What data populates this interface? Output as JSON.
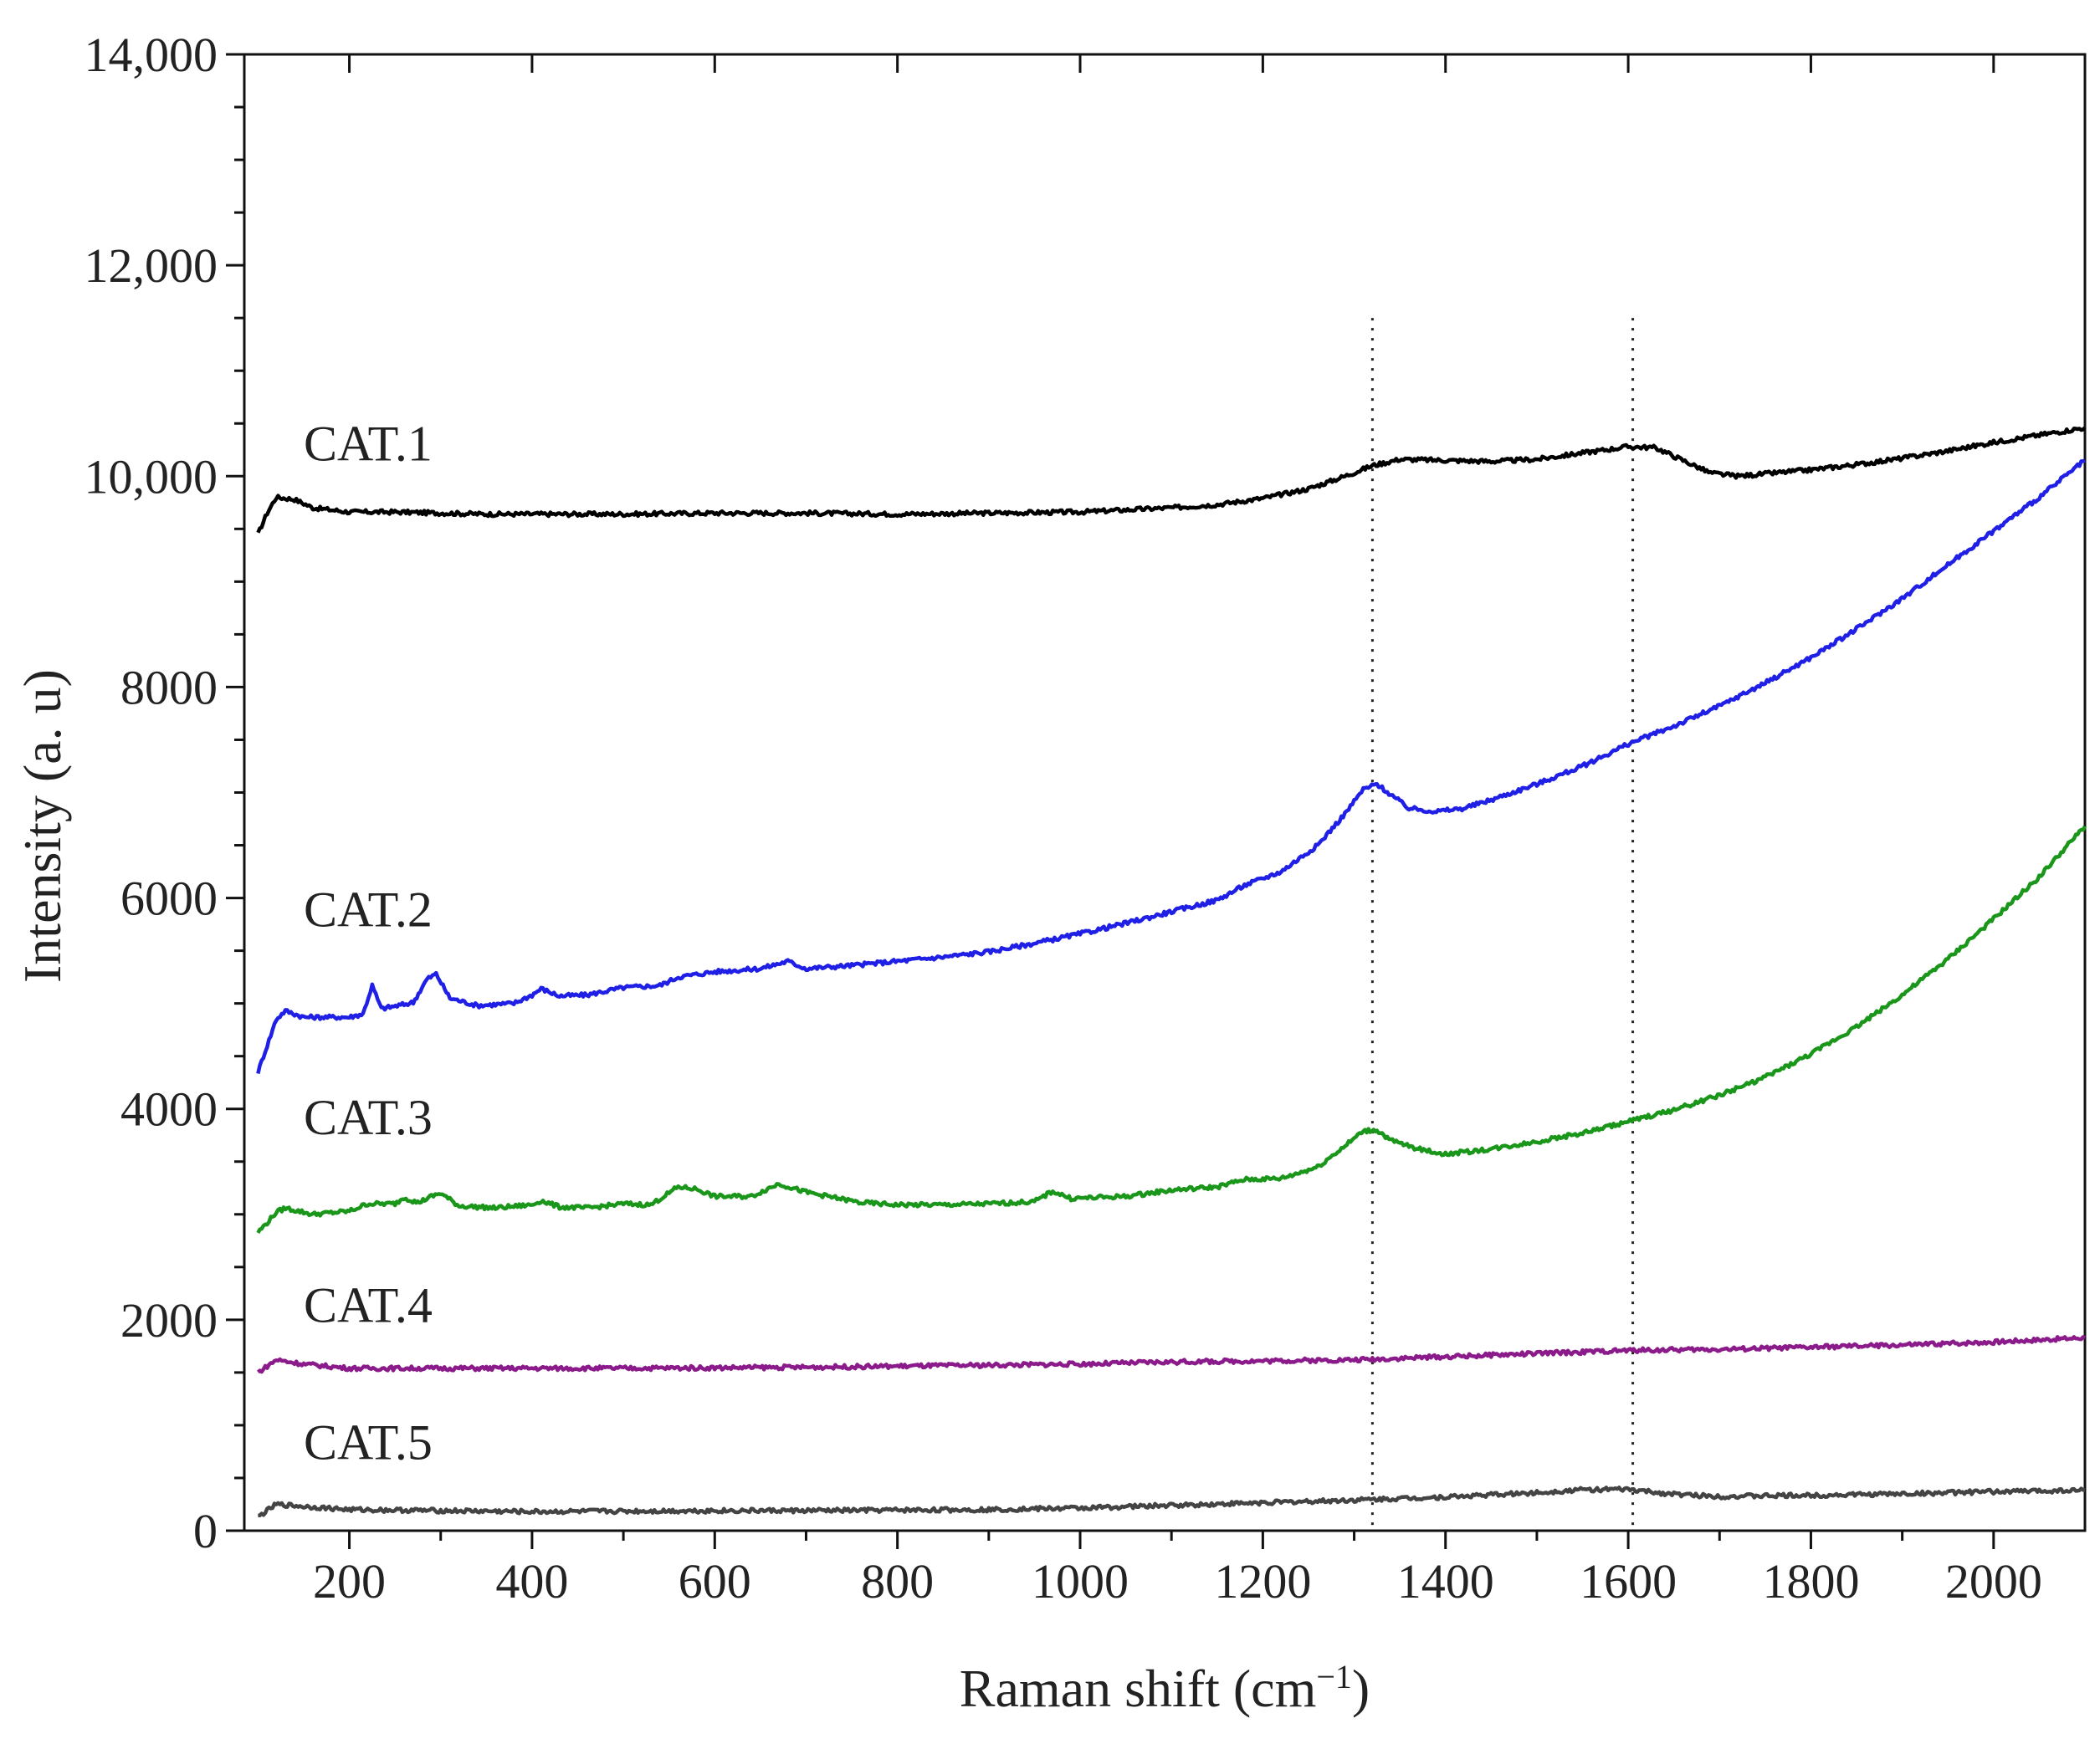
{
  "chart_data": {
    "type": "line",
    "title": "",
    "xlabel": "Raman shift (cm",
    "xlabel_sup": "−1",
    "xlabel_close": ")",
    "ylabel": "Intensity (a. u)",
    "xlim": [
      85,
      2100
    ],
    "ylim": [
      0,
      14000
    ],
    "x_ticks": [
      200,
      400,
      600,
      800,
      1000,
      1200,
      1400,
      1600,
      1800,
      2000
    ],
    "x_tick_labels": [
      "200",
      "400",
      "600",
      "800",
      "1000",
      "1200",
      "1400",
      "1600",
      "1800",
      "2000"
    ],
    "y_ticks": [
      0,
      2000,
      4000,
      6000,
      8000,
      10000,
      12000,
      14000
    ],
    "y_tick_labels": [
      "0",
      "2000",
      "4000",
      "6000",
      "8000",
      "10,000",
      "12,000",
      "14,000"
    ],
    "grid": false,
    "reference_lines": [
      {
        "x": 1320,
        "style": "dotted",
        "y_top": 11500
      },
      {
        "x": 1605,
        "style": "dotted",
        "y_top": 11500
      }
    ],
    "series": [
      {
        "name": "CAT.1",
        "color": "#000000",
        "label_pos": {
          "x": 150,
          "y": 10150
        },
        "points": [
          [
            100,
            9450
          ],
          [
            110,
            9650
          ],
          [
            120,
            9800
          ],
          [
            140,
            9780
          ],
          [
            160,
            9700
          ],
          [
            200,
            9660
          ],
          [
            250,
            9660
          ],
          [
            300,
            9650
          ],
          [
            350,
            9640
          ],
          [
            400,
            9640
          ],
          [
            500,
            9640
          ],
          [
            600,
            9650
          ],
          [
            700,
            9650
          ],
          [
            800,
            9640
          ],
          [
            900,
            9650
          ],
          [
            1000,
            9660
          ],
          [
            1100,
            9700
          ],
          [
            1150,
            9730
          ],
          [
            1200,
            9790
          ],
          [
            1250,
            9880
          ],
          [
            1290,
            10000
          ],
          [
            1320,
            10100
          ],
          [
            1350,
            10160
          ],
          [
            1400,
            10150
          ],
          [
            1450,
            10140
          ],
          [
            1500,
            10160
          ],
          [
            1550,
            10220
          ],
          [
            1600,
            10280
          ],
          [
            1630,
            10270
          ],
          [
            1660,
            10150
          ],
          [
            1690,
            10030
          ],
          [
            1720,
            10000
          ],
          [
            1760,
            10030
          ],
          [
            1800,
            10060
          ],
          [
            1850,
            10110
          ],
          [
            1900,
            10170
          ],
          [
            1950,
            10240
          ],
          [
            2000,
            10320
          ],
          [
            2050,
            10390
          ],
          [
            2100,
            10460
          ]
        ]
      },
      {
        "name": "CAT.2",
        "color": "#1f1fe6",
        "label_pos": {
          "x": 150,
          "y": 5730
        },
        "points": [
          [
            100,
            4350
          ],
          [
            110,
            4600
          ],
          [
            120,
            4850
          ],
          [
            130,
            4930
          ],
          [
            150,
            4870
          ],
          [
            200,
            4870
          ],
          [
            215,
            4900
          ],
          [
            225,
            5170
          ],
          [
            235,
            4950
          ],
          [
            260,
            4990
          ],
          [
            270,
            5010
          ],
          [
            285,
            5230
          ],
          [
            295,
            5280
          ],
          [
            310,
            5050
          ],
          [
            340,
            4980
          ],
          [
            380,
            5000
          ],
          [
            400,
            5080
          ],
          [
            410,
            5140
          ],
          [
            430,
            5070
          ],
          [
            460,
            5080
          ],
          [
            500,
            5150
          ],
          [
            540,
            5170
          ],
          [
            560,
            5250
          ],
          [
            600,
            5300
          ],
          [
            650,
            5330
          ],
          [
            680,
            5400
          ],
          [
            700,
            5330
          ],
          [
            750,
            5360
          ],
          [
            800,
            5400
          ],
          [
            850,
            5440
          ],
          [
            900,
            5490
          ],
          [
            950,
            5570
          ],
          [
            1000,
            5660
          ],
          [
            1050,
            5760
          ],
          [
            1100,
            5870
          ],
          [
            1150,
            5980
          ],
          [
            1180,
            6120
          ],
          [
            1220,
            6250
          ],
          [
            1260,
            6500
          ],
          [
            1290,
            6800
          ],
          [
            1310,
            7030
          ],
          [
            1325,
            7080
          ],
          [
            1340,
            6980
          ],
          [
            1360,
            6850
          ],
          [
            1390,
            6820
          ],
          [
            1420,
            6850
          ],
          [
            1450,
            6930
          ],
          [
            1500,
            7080
          ],
          [
            1550,
            7250
          ],
          [
            1600,
            7460
          ],
          [
            1650,
            7630
          ],
          [
            1700,
            7820
          ],
          [
            1750,
            8040
          ],
          [
            1800,
            8280
          ],
          [
            1850,
            8550
          ],
          [
            1900,
            8840
          ],
          [
            1950,
            9160
          ],
          [
            2000,
            9480
          ],
          [
            2050,
            9800
          ],
          [
            2100,
            10150
          ]
        ]
      },
      {
        "name": "CAT.3",
        "color": "#1a961a",
        "label_pos": {
          "x": 150,
          "y": 3760
        },
        "points": [
          [
            100,
            2830
          ],
          [
            110,
            2920
          ],
          [
            120,
            3020
          ],
          [
            130,
            3060
          ],
          [
            160,
            3000
          ],
          [
            200,
            3030
          ],
          [
            220,
            3100
          ],
          [
            250,
            3100
          ],
          [
            260,
            3160
          ],
          [
            275,
            3110
          ],
          [
            290,
            3170
          ],
          [
            300,
            3200
          ],
          [
            320,
            3080
          ],
          [
            360,
            3060
          ],
          [
            400,
            3090
          ],
          [
            410,
            3130
          ],
          [
            430,
            3070
          ],
          [
            460,
            3060
          ],
          [
            500,
            3100
          ],
          [
            530,
            3090
          ],
          [
            560,
            3260
          ],
          [
            580,
            3240
          ],
          [
            600,
            3170
          ],
          [
            640,
            3170
          ],
          [
            670,
            3290
          ],
          [
            700,
            3210
          ],
          [
            760,
            3110
          ],
          [
            800,
            3090
          ],
          [
            850,
            3090
          ],
          [
            900,
            3100
          ],
          [
            950,
            3120
          ],
          [
            970,
            3220
          ],
          [
            990,
            3150
          ],
          [
            1050,
            3170
          ],
          [
            1100,
            3230
          ],
          [
            1150,
            3260
          ],
          [
            1180,
            3330
          ],
          [
            1220,
            3340
          ],
          [
            1260,
            3450
          ],
          [
            1290,
            3650
          ],
          [
            1310,
            3790
          ],
          [
            1325,
            3800
          ],
          [
            1340,
            3700
          ],
          [
            1370,
            3620
          ],
          [
            1400,
            3570
          ],
          [
            1450,
            3620
          ],
          [
            1500,
            3690
          ],
          [
            1550,
            3770
          ],
          [
            1600,
            3880
          ],
          [
            1650,
            3990
          ],
          [
            1700,
            4130
          ],
          [
            1750,
            4300
          ],
          [
            1800,
            4520
          ],
          [
            1850,
            4780
          ],
          [
            1900,
            5080
          ],
          [
            1950,
            5420
          ],
          [
            2000,
            5800
          ],
          [
            2050,
            6200
          ],
          [
            2100,
            6680
          ]
        ]
      },
      {
        "name": "CAT.4",
        "color": "#8b1a8b",
        "label_pos": {
          "x": 150,
          "y": 1980
        },
        "points": [
          [
            100,
            1500
          ],
          [
            110,
            1560
          ],
          [
            120,
            1620
          ],
          [
            150,
            1580
          ],
          [
            200,
            1540
          ],
          [
            300,
            1540
          ],
          [
            400,
            1540
          ],
          [
            500,
            1540
          ],
          [
            600,
            1545
          ],
          [
            700,
            1550
          ],
          [
            800,
            1560
          ],
          [
            900,
            1570
          ],
          [
            1000,
            1580
          ],
          [
            1100,
            1600
          ],
          [
            1200,
            1610
          ],
          [
            1300,
            1620
          ],
          [
            1400,
            1650
          ],
          [
            1500,
            1680
          ],
          [
            1600,
            1710
          ],
          [
            1700,
            1720
          ],
          [
            1800,
            1740
          ],
          [
            1900,
            1760
          ],
          [
            2000,
            1790
          ],
          [
            2100,
            1830
          ]
        ]
      },
      {
        "name": "CAT.5",
        "color": "#444444",
        "label_pos": {
          "x": 150,
          "y": 680
        },
        "points": [
          [
            100,
            130
          ],
          [
            110,
            190
          ],
          [
            120,
            250
          ],
          [
            150,
            230
          ],
          [
            200,
            200
          ],
          [
            300,
            190
          ],
          [
            400,
            180
          ],
          [
            500,
            185
          ],
          [
            600,
            190
          ],
          [
            700,
            190
          ],
          [
            800,
            195
          ],
          [
            900,
            200
          ],
          [
            1000,
            215
          ],
          [
            1100,
            240
          ],
          [
            1200,
            265
          ],
          [
            1300,
            290
          ],
          [
            1400,
            320
          ],
          [
            1500,
            360
          ],
          [
            1550,
            390
          ],
          [
            1600,
            390
          ],
          [
            1650,
            345
          ],
          [
            1700,
            325
          ],
          [
            1800,
            335
          ],
          [
            1900,
            350
          ],
          [
            2000,
            370
          ],
          [
            2100,
            385
          ]
        ]
      }
    ]
  }
}
